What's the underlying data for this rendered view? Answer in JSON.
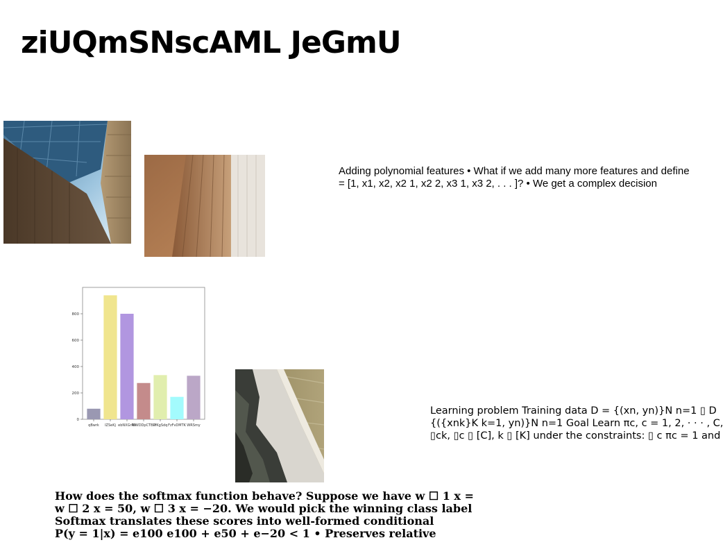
{
  "title": "ziUQmSNscAML JeGmU",
  "text_block_1": {
    "lines": [
      "Adding polynomial features • What if we add many more features and define",
      "= [1, x1, x2, x2 1, x2 2, x3 1, x3 2, . . . ]? • We get a complex decision"
    ]
  },
  "text_block_2": {
    "lines": [
      "Learning problem Training data D = {(xn, yn)}N n=1 ▯ D",
      "{({xnk}K k=1, yn)}N n=1 Goal Learn πc, c = 1, 2, · · · , C,",
      "▯ck, ▯c ▯ [C], k ▯ [K] under the constraints: ▯ c πc = 1 and"
    ]
  },
  "text_block_3": {
    "lines": [
      "How does the softmax function behave? Suppose we have w ☐ 1 x =",
      "w ☐ 2 x = 50, w ☐ 3 x = −20. We would pick the winning class label",
      "Softmax translates these scores into well-formed conditional",
      "P(y = 1|x) = e100 e100 + e50 + e−20 < 1 • Preserves relative"
    ]
  },
  "chart_data": {
    "type": "bar",
    "categories": [
      "qBwrk",
      "IZSeKj",
      "ebNXGrlW",
      "RIWDDpCTBU",
      "PfKgSdq",
      "FzFvDMTK",
      "WRSmy"
    ],
    "values": [
      80,
      940,
      800,
      275,
      335,
      170,
      330
    ],
    "colors": [
      "#9a98b2",
      "#f0e58e",
      "#b196e0",
      "#c48b8b",
      "#e1eeae",
      "#a3fbfd",
      "#bba7c7"
    ],
    "yticks": [
      0,
      200,
      400,
      600,
      800
    ],
    "ylim": [
      0,
      1000
    ],
    "grid": false
  }
}
